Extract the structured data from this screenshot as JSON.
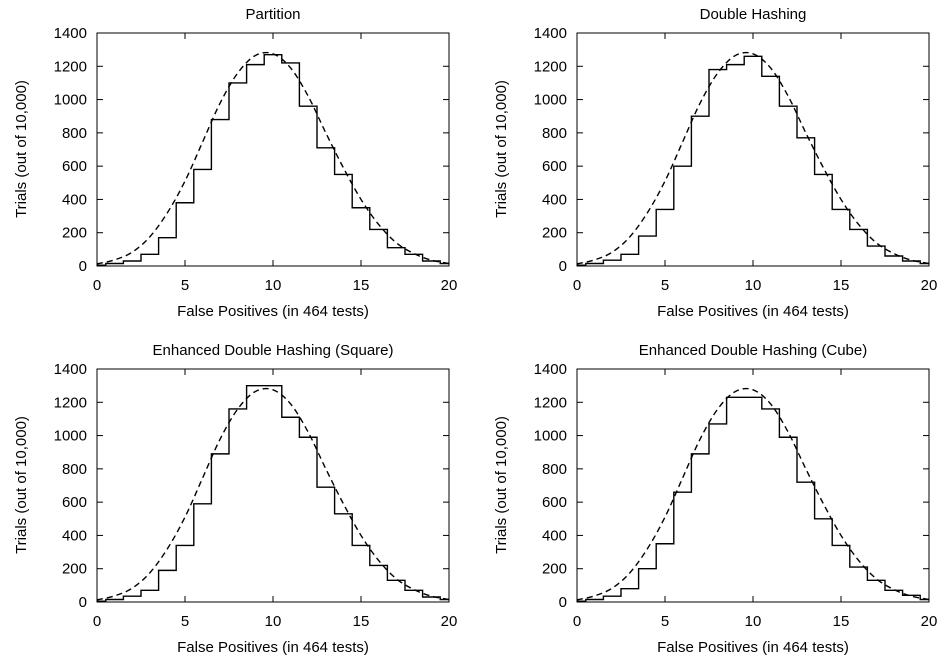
{
  "chart_data": [
    {
      "type": "line",
      "title": "Partition",
      "xlabel": "False Positives (in 464 tests)",
      "ylabel": "Trials (out of 10,000)",
      "xlim": [
        0,
        20
      ],
      "ylim": [
        0,
        1400
      ],
      "xticks": [
        "0",
        "5",
        "10",
        "15",
        "20"
      ],
      "yticks": [
        "0",
        "200",
        "400",
        "600",
        "800",
        "1000",
        "1200",
        "1400"
      ],
      "grid": false,
      "series": [
        {
          "style": "step",
          "x": [
            0,
            1,
            2,
            3,
            4,
            5,
            6,
            7,
            8,
            9,
            10,
            11,
            12,
            13,
            14,
            15,
            16,
            17,
            18,
            19,
            20
          ],
          "values": [
            5,
            15,
            30,
            70,
            170,
            380,
            580,
            880,
            1100,
            1210,
            1270,
            1220,
            960,
            710,
            550,
            350,
            220,
            110,
            70,
            30,
            15
          ]
        },
        {
          "style": "dashed",
          "x": [
            0,
            1,
            2,
            3,
            4,
            5,
            6,
            7,
            8,
            9,
            10,
            11,
            12,
            13,
            14,
            15,
            16,
            17,
            18,
            19,
            20
          ],
          "values": [
            13,
            37,
            83,
            175,
            320,
            510,
            745,
            980,
            1160,
            1265,
            1275,
            1190,
            1020,
            800,
            590,
            400,
            250,
            140,
            75,
            35,
            15
          ]
        }
      ]
    },
    {
      "type": "line",
      "title": "Double Hashing",
      "xlabel": "False Positives (in 464 tests)",
      "ylabel": "Trials (out of 10,000)",
      "xlim": [
        0,
        20
      ],
      "ylim": [
        0,
        1400
      ],
      "xticks": [
        "0",
        "5",
        "10",
        "15",
        "20"
      ],
      "yticks": [
        "0",
        "200",
        "400",
        "600",
        "800",
        "1000",
        "1200",
        "1400"
      ],
      "grid": false,
      "series": [
        {
          "style": "step",
          "x": [
            0,
            1,
            2,
            3,
            4,
            5,
            6,
            7,
            8,
            9,
            10,
            11,
            12,
            13,
            14,
            15,
            16,
            17,
            18,
            19,
            20
          ],
          "values": [
            5,
            15,
            35,
            70,
            180,
            340,
            600,
            900,
            1180,
            1210,
            1260,
            1140,
            960,
            770,
            550,
            340,
            220,
            120,
            60,
            30,
            15
          ]
        },
        {
          "style": "dashed",
          "x": [
            0,
            1,
            2,
            3,
            4,
            5,
            6,
            7,
            8,
            9,
            10,
            11,
            12,
            13,
            14,
            15,
            16,
            17,
            18,
            19,
            20
          ],
          "values": [
            13,
            37,
            83,
            175,
            320,
            510,
            745,
            980,
            1160,
            1265,
            1275,
            1190,
            1020,
            800,
            590,
            400,
            250,
            140,
            75,
            35,
            15
          ]
        }
      ]
    },
    {
      "type": "line",
      "title": "Enhanced Double Hashing (Square)",
      "xlabel": "False Positives (in 464 tests)",
      "ylabel": "Trials (out of 10,000)",
      "xlim": [
        0,
        20
      ],
      "ylim": [
        0,
        1400
      ],
      "xticks": [
        "0",
        "5",
        "10",
        "15",
        "20"
      ],
      "yticks": [
        "0",
        "200",
        "400",
        "600",
        "800",
        "1000",
        "1200",
        "1400"
      ],
      "grid": false,
      "series": [
        {
          "style": "step",
          "x": [
            0,
            1,
            2,
            3,
            4,
            5,
            6,
            7,
            8,
            9,
            10,
            11,
            12,
            13,
            14,
            15,
            16,
            17,
            18,
            19,
            20
          ],
          "values": [
            5,
            15,
            35,
            70,
            190,
            340,
            590,
            890,
            1160,
            1300,
            1300,
            1110,
            990,
            690,
            530,
            340,
            220,
            130,
            70,
            30,
            15
          ]
        },
        {
          "style": "dashed",
          "x": [
            0,
            1,
            2,
            3,
            4,
            5,
            6,
            7,
            8,
            9,
            10,
            11,
            12,
            13,
            14,
            15,
            16,
            17,
            18,
            19,
            20
          ],
          "values": [
            13,
            37,
            83,
            175,
            320,
            510,
            745,
            980,
            1160,
            1265,
            1275,
            1190,
            1020,
            800,
            590,
            400,
            250,
            140,
            75,
            35,
            15
          ]
        }
      ]
    },
    {
      "type": "line",
      "title": "Enhanced Double Hashing (Cube)",
      "xlabel": "False Positives (in 464 tests)",
      "ylabel": "Trials (out of 10,000)",
      "xlim": [
        0,
        20
      ],
      "ylim": [
        0,
        1400
      ],
      "xticks": [
        "0",
        "5",
        "10",
        "15",
        "20"
      ],
      "yticks": [
        "0",
        "200",
        "400",
        "600",
        "800",
        "1000",
        "1200",
        "1400"
      ],
      "grid": false,
      "series": [
        {
          "style": "step",
          "x": [
            0,
            1,
            2,
            3,
            4,
            5,
            6,
            7,
            8,
            9,
            10,
            11,
            12,
            13,
            14,
            15,
            16,
            17,
            18,
            19,
            20
          ],
          "values": [
            5,
            15,
            35,
            80,
            200,
            350,
            660,
            890,
            1070,
            1230,
            1230,
            1160,
            990,
            720,
            500,
            340,
            210,
            130,
            70,
            40,
            15
          ]
        },
        {
          "style": "dashed",
          "x": [
            0,
            1,
            2,
            3,
            4,
            5,
            6,
            7,
            8,
            9,
            10,
            11,
            12,
            13,
            14,
            15,
            16,
            17,
            18,
            19,
            20
          ],
          "values": [
            13,
            37,
            83,
            175,
            320,
            510,
            745,
            980,
            1160,
            1265,
            1275,
            1190,
            1020,
            800,
            590,
            400,
            250,
            140,
            75,
            35,
            15
          ]
        }
      ]
    }
  ]
}
